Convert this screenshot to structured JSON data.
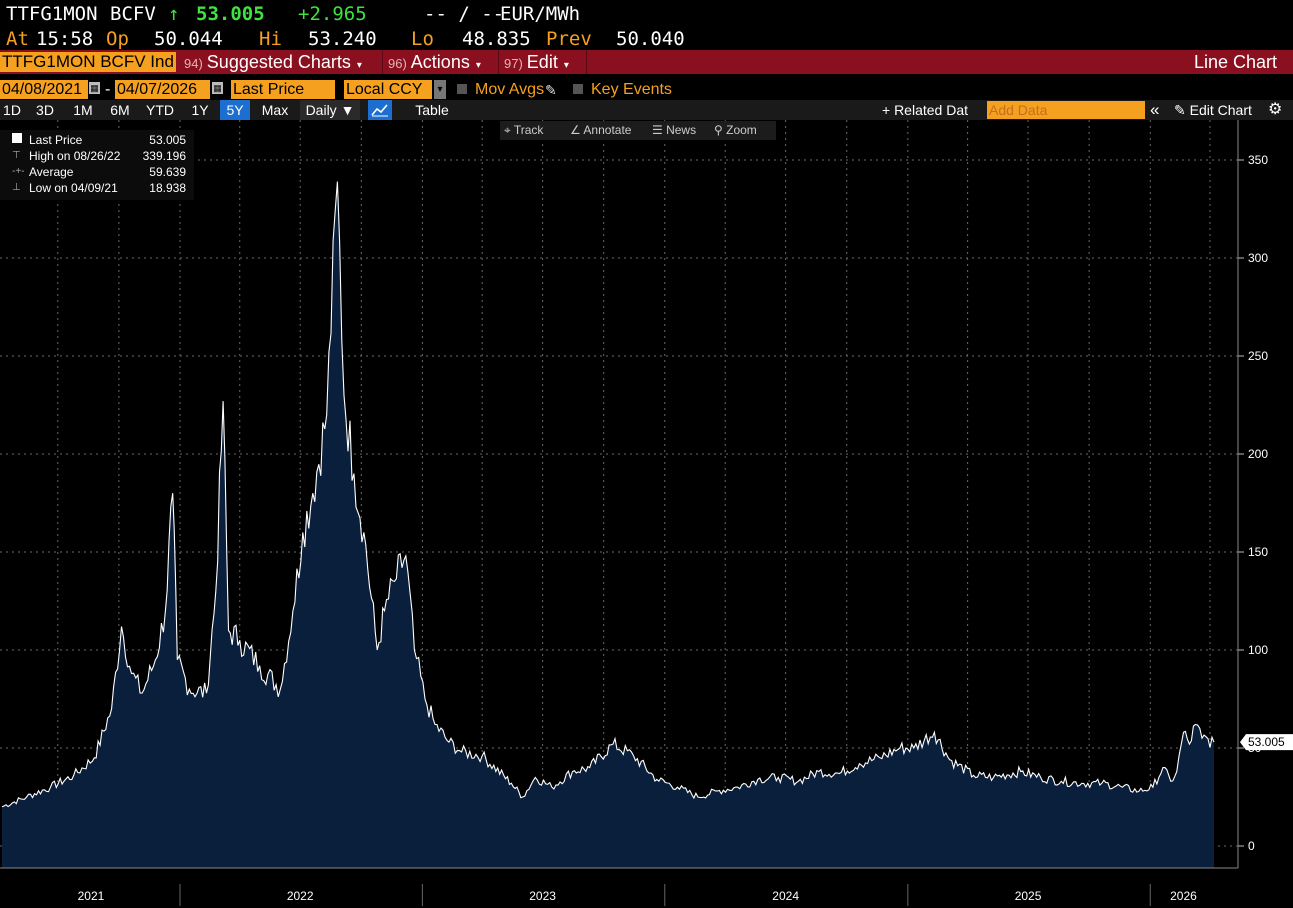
{
  "quote": {
    "ticker": "TTFG1MON",
    "source": "BCFV",
    "arrow": "↑",
    "last": "53.005",
    "change": "+2.965",
    "bidask": "-- / --",
    "unit": "EUR/MWh",
    "at_label": "At",
    "at_time": "15:58",
    "open_label": "Op",
    "open": "50.044",
    "hi_label": "Hi",
    "hi": "53.240",
    "lo_label": "Lo",
    "lo": "48.835",
    "prev_label": "Prev",
    "prev": "50.040"
  },
  "toolbar": {
    "security": "TTFG1MON BCFV Ind",
    "suggested_num": "94)",
    "suggested": "Suggested Charts",
    "actions_num": "96)",
    "actions": "Actions",
    "edit_num": "97)",
    "edit": "Edit",
    "chart_type": "Line Chart",
    "caret": "▾"
  },
  "controls": {
    "start_date": "04/08/2021",
    "dash": "-",
    "end_date": "04/07/2026",
    "field": "Last Price",
    "currency": "Local CCY",
    "mov_avgs": "Mov Avgs",
    "key_events": "Key Events"
  },
  "tabs": {
    "ranges": [
      "1D",
      "3D",
      "1M",
      "6M",
      "YTD",
      "1Y",
      "5Y",
      "Max"
    ],
    "active": "5Y",
    "period": "Daily ▼",
    "table": "Table",
    "related": "+ Related Dat",
    "add_data_placeholder": "Add Data",
    "collapse": "«",
    "edit_chart": "✎ Edit Chart",
    "settings": "⚙"
  },
  "chart_tools": {
    "track": "⌖ Track",
    "annotate": "∠ Annotate",
    "news": "☰ News",
    "zoom": "⚲ Zoom"
  },
  "legend": {
    "last_label": "Last Price",
    "last_value": "53.005",
    "high_label": "High on 08/26/22",
    "high_value": "339.196",
    "avg_label": "Average",
    "avg_value": "59.639",
    "low_label": "Low on 04/09/21",
    "low_value": "18.938"
  },
  "colors": {
    "accent_orange": "#f5a01e",
    "toolbar_red": "#8a0f1f",
    "fill": "#0a1f3c",
    "line": "#ffffff",
    "green": "#3fe23f"
  },
  "chart_data": {
    "type": "area",
    "title": "",
    "xlabel": "",
    "ylabel": "",
    "x_tick_labels": [
      "2021",
      "2022",
      "2023",
      "2024",
      "2025",
      "2026"
    ],
    "y_ticks": [
      0,
      50,
      100,
      150,
      200,
      250,
      300,
      350
    ],
    "ylim": [
      -10,
      360
    ],
    "xlim": [
      "2021-04-08",
      "2026-04-07"
    ],
    "grid": true,
    "last_value_label": "53.005",
    "series": [
      {
        "name": "Last Price",
        "points": [
          [
            "2021-04-08",
            20
          ],
          [
            "2021-05-15",
            25
          ],
          [
            "2021-06-20",
            30
          ],
          [
            "2021-07-25",
            36
          ],
          [
            "2021-08-25",
            45
          ],
          [
            "2021-09-20",
            70
          ],
          [
            "2021-10-05",
            112
          ],
          [
            "2021-10-20",
            88
          ],
          [
            "2021-11-05",
            78
          ],
          [
            "2021-11-25",
            95
          ],
          [
            "2021-12-10",
            120
          ],
          [
            "2021-12-21",
            180
          ],
          [
            "2021-12-28",
            95
          ],
          [
            "2022-01-15",
            80
          ],
          [
            "2022-02-10",
            78
          ],
          [
            "2022-02-24",
            130
          ],
          [
            "2022-03-07",
            227
          ],
          [
            "2022-03-15",
            110
          ],
          [
            "2022-04-01",
            105
          ],
          [
            "2022-05-01",
            92
          ],
          [
            "2022-06-01",
            80
          ],
          [
            "2022-06-20",
            120
          ],
          [
            "2022-07-05",
            160
          ],
          [
            "2022-07-20",
            180
          ],
          [
            "2022-08-10",
            220
          ],
          [
            "2022-08-26",
            339
          ],
          [
            "2022-09-05",
            230
          ],
          [
            "2022-09-20",
            190
          ],
          [
            "2022-10-05",
            160
          ],
          [
            "2022-10-25",
            100
          ],
          [
            "2022-11-05",
            120
          ],
          [
            "2022-11-20",
            135
          ],
          [
            "2022-12-07",
            148
          ],
          [
            "2022-12-20",
            100
          ],
          [
            "2023-01-05",
            75
          ],
          [
            "2023-01-20",
            62
          ],
          [
            "2023-02-10",
            53
          ],
          [
            "2023-03-01",
            48
          ],
          [
            "2023-04-01",
            46
          ],
          [
            "2023-05-15",
            32
          ],
          [
            "2023-06-01",
            25
          ],
          [
            "2023-06-20",
            35
          ],
          [
            "2023-07-15",
            30
          ],
          [
            "2023-08-15",
            38
          ],
          [
            "2023-09-10",
            40
          ],
          [
            "2023-10-15",
            52
          ],
          [
            "2023-11-15",
            46
          ],
          [
            "2023-12-20",
            34
          ],
          [
            "2024-01-20",
            30
          ],
          [
            "2024-02-20",
            25
          ],
          [
            "2024-03-20",
            28
          ],
          [
            "2024-04-20",
            30
          ],
          [
            "2024-05-20",
            34
          ],
          [
            "2024-06-20",
            35
          ],
          [
            "2024-07-20",
            33
          ],
          [
            "2024-08-20",
            38
          ],
          [
            "2024-09-20",
            37
          ],
          [
            "2024-10-20",
            42
          ],
          [
            "2024-11-20",
            45
          ],
          [
            "2024-12-20",
            50
          ],
          [
            "2025-01-10",
            50
          ],
          [
            "2025-02-10",
            58
          ],
          [
            "2025-03-05",
            44
          ],
          [
            "2025-04-10",
            36
          ],
          [
            "2025-05-10",
            35
          ],
          [
            "2025-06-20",
            38
          ],
          [
            "2025-07-20",
            35
          ],
          [
            "2025-08-20",
            33
          ],
          [
            "2025-09-20",
            32
          ],
          [
            "2025-10-20",
            32
          ],
          [
            "2025-11-20",
            30
          ],
          [
            "2025-12-15",
            28
          ],
          [
            "2026-01-05",
            30
          ],
          [
            "2026-01-20",
            40
          ],
          [
            "2026-02-01",
            33
          ],
          [
            "2026-02-10",
            38
          ],
          [
            "2026-02-20",
            58
          ],
          [
            "2026-03-01",
            52
          ],
          [
            "2026-03-10",
            62
          ],
          [
            "2026-03-20",
            55
          ],
          [
            "2026-04-07",
            53.005
          ]
        ]
      }
    ]
  }
}
